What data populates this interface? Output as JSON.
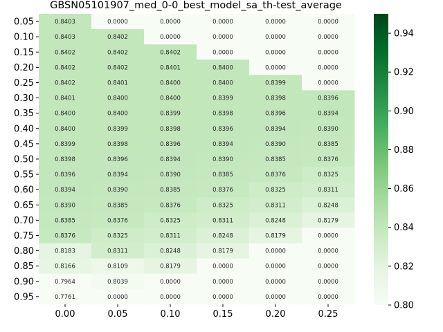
{
  "chart_data": {
    "type": "heatmap",
    "title": "GBSN05101907_med_0-0_best_model_sa_th-test_average",
    "x_categories": [
      "0.00",
      "0.05",
      "0.10",
      "0.15",
      "0.20",
      "0.25"
    ],
    "y_categories": [
      "0.05",
      "0.10",
      "0.15",
      "0.20",
      "0.25",
      "0.30",
      "0.35",
      "0.40",
      "0.45",
      "0.50",
      "0.55",
      "0.60",
      "0.65",
      "0.70",
      "0.75",
      "0.80",
      "0.85",
      "0.90",
      "0.95"
    ],
    "values": [
      [
        "0.8403",
        "0.0000",
        "0.0000",
        "0.0000",
        "0.0000",
        "0.0000"
      ],
      [
        "0.8403",
        "0.8402",
        "0.0000",
        "0.0000",
        "0.0000",
        "0.0000"
      ],
      [
        "0.8402",
        "0.8402",
        "0.8402",
        "0.0000",
        "0.0000",
        "0.0000"
      ],
      [
        "0.8402",
        "0.8402",
        "0.8401",
        "0.8400",
        "0.0000",
        "0.0000"
      ],
      [
        "0.8402",
        "0.8401",
        "0.8400",
        "0.8400",
        "0.8399",
        "0.0000"
      ],
      [
        "0.8401",
        "0.8400",
        "0.8400",
        "0.8399",
        "0.8398",
        "0.8396"
      ],
      [
        "0.8400",
        "0.8400",
        "0.8399",
        "0.8398",
        "0.8396",
        "0.8394"
      ],
      [
        "0.8400",
        "0.8399",
        "0.8398",
        "0.8396",
        "0.8394",
        "0.8390"
      ],
      [
        "0.8399",
        "0.8398",
        "0.8396",
        "0.8394",
        "0.8390",
        "0.8385"
      ],
      [
        "0.8398",
        "0.8396",
        "0.8394",
        "0.8390",
        "0.8385",
        "0.8376"
      ],
      [
        "0.8396",
        "0.8394",
        "0.8390",
        "0.8385",
        "0.8376",
        "0.8325"
      ],
      [
        "0.8394",
        "0.8390",
        "0.8385",
        "0.8376",
        "0.8325",
        "0.8311"
      ],
      [
        "0.8390",
        "0.8385",
        "0.8376",
        "0.8325",
        "0.8311",
        "0.8248"
      ],
      [
        "0.8385",
        "0.8376",
        "0.8325",
        "0.8311",
        "0.8248",
        "0.8179"
      ],
      [
        "0.8376",
        "0.8325",
        "0.8311",
        "0.8248",
        "0.8179",
        "0.0000"
      ],
      [
        "0.8183",
        "0.8311",
        "0.8248",
        "0.8179",
        "0.0000",
        "0.0000"
      ],
      [
        "0.8166",
        "0.8109",
        "0.8179",
        "0.0000",
        "0.0000",
        "0.0000"
      ],
      [
        "0.7964",
        "0.8039",
        "0.0000",
        "0.0000",
        "0.0000",
        "0.0000"
      ],
      [
        "0.7761",
        "0.0000",
        "0.0000",
        "0.0000",
        "0.0000",
        "0.0000"
      ]
    ],
    "colormap": "Greens",
    "vmin": 0.8,
    "vmax": 0.95,
    "colorbar_ticks": [
      "0.80",
      "0.82",
      "0.84",
      "0.86",
      "0.88",
      "0.90",
      "0.92",
      "0.94"
    ],
    "colorbar_stops": [
      "#f7fcf5",
      "#e5f5e0",
      "#c7e9c0",
      "#a1d99b",
      "#74c476",
      "#41ab5d",
      "#238b45",
      "#006d2c",
      "#00441b"
    ]
  }
}
